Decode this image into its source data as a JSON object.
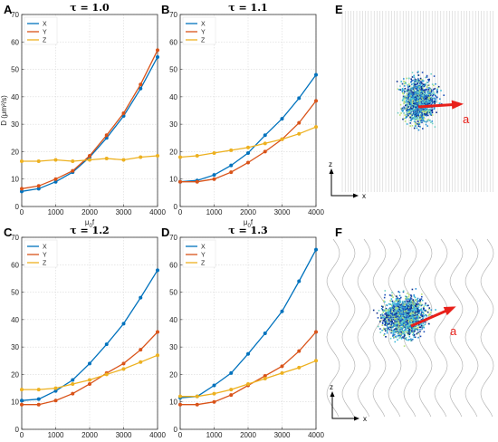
{
  "colors": {
    "x": "#0072BD",
    "y": "#D95319",
    "z": "#EDB120",
    "arrow": "#e8201a"
  },
  "chart_data": [
    {
      "type": "line",
      "letter": "A",
      "title": "τ = 1.0",
      "xlabel": "μ0f",
      "ylabel": "D (μm²/s)",
      "xlim": [
        0,
        4000
      ],
      "ylim": [
        0,
        70
      ],
      "xticks": [
        0,
        1000,
        2000,
        3000,
        4000
      ],
      "yticks": [
        0,
        10,
        20,
        30,
        40,
        50,
        60,
        70
      ],
      "grid": true,
      "legend": "top-left",
      "x": [
        0,
        500,
        1000,
        1500,
        2000,
        2500,
        3000,
        3500,
        4000
      ],
      "series": [
        {
          "name": "X",
          "key": "x",
          "values": [
            5.5,
            6.5,
            9,
            12.5,
            18,
            25,
            33,
            43,
            54.5
          ]
        },
        {
          "name": "Y",
          "key": "y",
          "values": [
            6.5,
            7.5,
            10,
            13,
            18.5,
            26,
            34,
            44.5,
            57
          ]
        },
        {
          "name": "Z",
          "key": "z",
          "values": [
            16.5,
            16.5,
            17,
            16.5,
            17,
            17.5,
            17,
            18,
            18.5
          ]
        }
      ]
    },
    {
      "type": "line",
      "letter": "B",
      "title": "τ = 1.1",
      "xlabel": "μ0f",
      "ylabel": "",
      "xlim": [
        0,
        4000
      ],
      "ylim": [
        0,
        70
      ],
      "xticks": [
        0,
        1000,
        2000,
        3000,
        4000
      ],
      "yticks": [
        0,
        10,
        20,
        30,
        40,
        50,
        60,
        70
      ],
      "grid": true,
      "legend": "top-left",
      "x": [
        0,
        500,
        1000,
        1500,
        2000,
        2500,
        3000,
        3500,
        4000
      ],
      "series": [
        {
          "name": "X",
          "key": "x",
          "values": [
            9,
            9.5,
            11.5,
            15,
            19.5,
            26,
            32,
            39.5,
            48
          ]
        },
        {
          "name": "Y",
          "key": "y",
          "values": [
            9,
            9,
            10,
            12.5,
            16,
            20,
            24.5,
            30.5,
            38.5
          ]
        },
        {
          "name": "Z",
          "key": "z",
          "values": [
            18,
            18.5,
            19.5,
            20.5,
            21.5,
            23,
            24.5,
            26.5,
            29
          ]
        }
      ]
    },
    {
      "type": "line",
      "letter": "C",
      "title": "τ = 1.2",
      "xlabel": "μ0f",
      "ylabel": "",
      "xlim": [
        0,
        4000
      ],
      "ylim": [
        0,
        70
      ],
      "xticks": [
        0,
        1000,
        2000,
        3000,
        4000
      ],
      "yticks": [
        0,
        10,
        20,
        30,
        40,
        50,
        60,
        70
      ],
      "grid": true,
      "legend": "top-left",
      "x": [
        0,
        500,
        1000,
        1500,
        2000,
        2500,
        3000,
        3500,
        4000
      ],
      "series": [
        {
          "name": "X",
          "key": "x",
          "values": [
            10.5,
            11,
            14,
            18,
            24,
            31,
            38.5,
            48,
            58
          ]
        },
        {
          "name": "Y",
          "key": "y",
          "values": [
            9,
            9,
            10.5,
            13,
            16.5,
            20.5,
            24,
            29,
            35.5
          ]
        },
        {
          "name": "Z",
          "key": "z",
          "values": [
            14.5,
            14.5,
            15,
            16.5,
            18,
            20,
            22,
            24.5,
            27
          ]
        }
      ]
    },
    {
      "type": "line",
      "letter": "D",
      "title": "τ = 1.3",
      "xlabel": "μ0f",
      "ylabel": "",
      "xlim": [
        0,
        4000
      ],
      "ylim": [
        0,
        70
      ],
      "xticks": [
        0,
        1000,
        2000,
        3000,
        4000
      ],
      "yticks": [
        0,
        10,
        20,
        30,
        40,
        50,
        60,
        70
      ],
      "grid": true,
      "legend": "top-left",
      "x": [
        0,
        500,
        1000,
        1500,
        2000,
        2500,
        3000,
        3500,
        4000
      ],
      "series": [
        {
          "name": "X",
          "key": "x",
          "values": [
            11.5,
            12,
            16,
            20.5,
            27.5,
            35,
            43,
            54,
            65.5
          ]
        },
        {
          "name": "Y",
          "key": "y",
          "values": [
            9,
            9,
            10,
            12.5,
            16,
            19.5,
            23,
            28.5,
            35.5
          ]
        },
        {
          "name": "Z",
          "key": "z",
          "values": [
            12,
            12,
            13,
            14.5,
            16.5,
            18.5,
            20.5,
            22.5,
            25
          ]
        }
      ]
    }
  ],
  "sim_panels": [
    {
      "letter": "E",
      "axis_z": "z",
      "axis_x": "x",
      "vector_label": "a",
      "channel": "straight"
    },
    {
      "letter": "F",
      "axis_z": "z",
      "axis_x": "x",
      "vector_label": "a",
      "channel": "wavy"
    }
  ]
}
